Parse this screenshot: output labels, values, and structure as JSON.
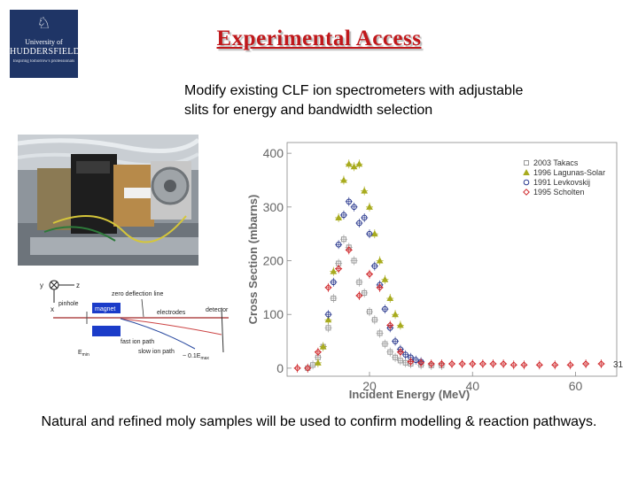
{
  "logo": {
    "crest": "♘",
    "line1": "University of",
    "line2": "HUDDERSFIELD",
    "line3": "Inspiring tomorrow's professionals"
  },
  "title": "Experimental Access",
  "subtitle_line1": "Modify existing CLF ion spectrometers with adjustable",
  "subtitle_line2": "slits for energy and bandwidth selection",
  "schematic": {
    "axis_y": "y",
    "axis_z": "z",
    "axis_x": "x",
    "zero_deflection": "zero deflection line",
    "pinhole": "pinhole",
    "magnet": "magnet",
    "electrodes": "electrodes",
    "detector": "detector",
    "fast_ion_path": "fast ion path",
    "slow_ion_path": "slow ion path",
    "emin": "E",
    "emin_sub": "min",
    "emax_text": "~ 0.1E",
    "emax_sub": "max"
  },
  "slide_number": "31",
  "caption": "Natural and refined moly samples will be used to confirm modelling & reaction pathways.",
  "colors": {
    "title": "#c0181b",
    "takacs": "#9a9a9a",
    "lagunas": "#a8ab1e",
    "levkovskij": "#2b3a8f",
    "scholten": "#d0282b"
  },
  "chart_data": {
    "type": "scatter",
    "xlabel": "Incident Energy (MeV)",
    "ylabel": "Cross Section (mbarns)",
    "xlim": [
      4,
      68
    ],
    "ylim": [
      -15,
      420
    ],
    "xticks": [
      20,
      40,
      60
    ],
    "yticks": [
      0,
      100,
      200,
      300,
      400
    ],
    "legend_position": "top-right",
    "series": [
      {
        "name": "2003 Takacs",
        "marker": "square",
        "color": "#9a9a9a",
        "x": [
          8,
          9,
          10,
          11,
          12,
          13,
          14,
          15,
          16,
          17,
          18,
          19,
          20,
          21,
          22,
          23,
          24,
          25,
          26,
          27,
          28,
          30,
          32,
          34
        ],
        "y": [
          0,
          6,
          20,
          40,
          75,
          130,
          195,
          240,
          225,
          200,
          160,
          140,
          105,
          90,
          65,
          45,
          30,
          20,
          14,
          10,
          8,
          6,
          5,
          5
        ]
      },
      {
        "name": "1996 Lagunas-Solar",
        "marker": "triangle",
        "color": "#a8ab1e",
        "x": [
          10,
          11,
          12,
          13,
          14,
          15,
          16,
          17,
          18,
          19,
          20,
          21,
          22,
          23,
          24,
          25,
          26
        ],
        "y": [
          10,
          40,
          90,
          180,
          280,
          350,
          380,
          375,
          380,
          330,
          300,
          250,
          200,
          165,
          130,
          100,
          80
        ]
      },
      {
        "name": "1991 Levkovskij",
        "marker": "circle",
        "color": "#2b3a8f",
        "x": [
          12,
          13,
          14,
          15,
          16,
          17,
          18,
          19,
          20,
          21,
          22,
          23,
          24,
          25,
          26,
          27,
          28,
          29,
          30
        ],
        "y": [
          100,
          160,
          230,
          285,
          310,
          300,
          270,
          280,
          250,
          190,
          155,
          110,
          75,
          50,
          35,
          25,
          20,
          15,
          12
        ]
      },
      {
        "name": "1995 Scholten",
        "marker": "diamond",
        "color": "#d0282b",
        "x": [
          6,
          8,
          10,
          12,
          14,
          16,
          18,
          20,
          22,
          24,
          26,
          28,
          30,
          32,
          34,
          36,
          38,
          40,
          42,
          44,
          46,
          48,
          50,
          53,
          56,
          59,
          62,
          65
        ],
        "y": [
          0,
          0,
          30,
          150,
          185,
          220,
          135,
          175,
          150,
          80,
          30,
          12,
          10,
          8,
          8,
          8,
          8,
          8,
          8,
          8,
          8,
          6,
          6,
          6,
          6,
          6,
          8,
          8
        ]
      }
    ]
  }
}
